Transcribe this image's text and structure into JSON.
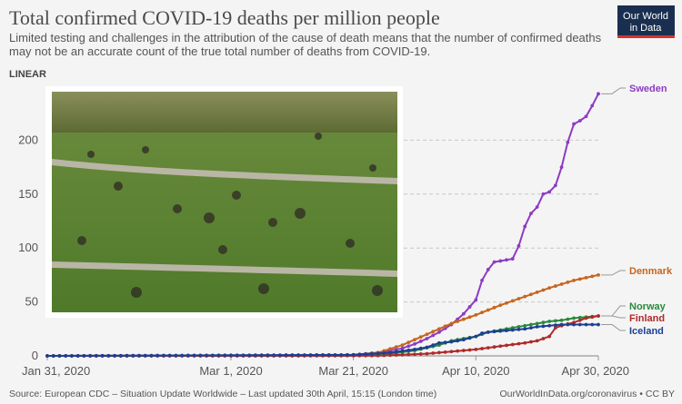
{
  "header": {
    "title": "Total confirmed COVID-19 deaths per million people",
    "subtitle_line1": "Limited testing and challenges in the attribution of the cause of death means that the number of confirmed deaths",
    "subtitle_line2": "may not be an accurate count of the true total number of deaths from COVID-19.",
    "scale_label": "LINEAR"
  },
  "logo": {
    "line1": "Our World",
    "line2": "in Data",
    "bg": "#1a2f4f",
    "accent": "#d3342d"
  },
  "footer": {
    "source": "Source: European CDC – Situation Update Worldwide – Last updated 30th April, 15:15 (London time)",
    "credit": "OurWorldInData.org/coronavirus • CC BY"
  },
  "photo": {
    "alt": "people-in-park-photo"
  },
  "chart_data": {
    "type": "line",
    "title": "Total confirmed COVID-19 deaths per million people",
    "xlabel": "",
    "ylabel": "",
    "x_ticks": [
      {
        "day": 0,
        "label": "Jan 31, 2020"
      },
      {
        "day": 30,
        "label": "Mar 1, 2020"
      },
      {
        "day": 50,
        "label": "Mar 21, 2020"
      },
      {
        "day": 70,
        "label": "Apr 10, 2020"
      },
      {
        "day": 90,
        "label": "Apr 30, 2020"
      }
    ],
    "xlim": [
      0,
      90
    ],
    "ylim": [
      0,
      250
    ],
    "y_ticks": [
      0,
      50,
      100,
      150,
      200
    ],
    "series": [
      {
        "name": "Sweden",
        "color": "#8d3bc4",
        "points": [
          [
            0,
            0
          ],
          [
            48,
            0.2
          ],
          [
            50,
            1
          ],
          [
            52,
            2
          ],
          [
            54,
            3
          ],
          [
            56,
            5
          ],
          [
            58,
            7
          ],
          [
            60,
            11
          ],
          [
            62,
            16
          ],
          [
            64,
            22
          ],
          [
            66,
            29
          ],
          [
            68,
            39
          ],
          [
            70,
            52
          ],
          [
            71,
            70
          ],
          [
            72,
            80
          ],
          [
            73,
            87
          ],
          [
            74,
            88
          ],
          [
            75,
            89
          ],
          [
            76,
            90
          ],
          [
            77,
            102
          ],
          [
            78,
            120
          ],
          [
            79,
            132
          ],
          [
            80,
            138
          ],
          [
            81,
            150
          ],
          [
            82,
            152
          ],
          [
            83,
            158
          ],
          [
            84,
            175
          ],
          [
            85,
            198
          ],
          [
            86,
            215
          ],
          [
            87,
            218
          ],
          [
            88,
            222
          ],
          [
            89,
            232
          ],
          [
            90,
            243
          ]
        ]
      },
      {
        "name": "Denmark",
        "color": "#c8641d",
        "points": [
          [
            0,
            0
          ],
          [
            50,
            0.5
          ],
          [
            54,
            3
          ],
          [
            58,
            10
          ],
          [
            62,
            20
          ],
          [
            66,
            30
          ],
          [
            70,
            38
          ],
          [
            74,
            47
          ],
          [
            78,
            55
          ],
          [
            82,
            63
          ],
          [
            86,
            70
          ],
          [
            90,
            75
          ]
        ]
      },
      {
        "name": "Norway",
        "color": "#2a8a3b",
        "points": [
          [
            0,
            0
          ],
          [
            50,
            0.3
          ],
          [
            56,
            2
          ],
          [
            60,
            5
          ],
          [
            64,
            10
          ],
          [
            66,
            14
          ],
          [
            68,
            16
          ],
          [
            70,
            18
          ],
          [
            72,
            22
          ],
          [
            74,
            24
          ],
          [
            76,
            26
          ],
          [
            78,
            28
          ],
          [
            80,
            30
          ],
          [
            82,
            32
          ],
          [
            84,
            33
          ],
          [
            86,
            35
          ],
          [
            88,
            36
          ],
          [
            90,
            37
          ]
        ]
      },
      {
        "name": "Finland",
        "color": "#b02a2a",
        "points": [
          [
            0,
            0
          ],
          [
            54,
            0.2
          ],
          [
            58,
            1
          ],
          [
            62,
            2
          ],
          [
            66,
            4
          ],
          [
            70,
            6
          ],
          [
            74,
            9
          ],
          [
            78,
            12
          ],
          [
            80,
            14
          ],
          [
            82,
            18
          ],
          [
            83,
            26
          ],
          [
            84,
            28
          ],
          [
            86,
            31
          ],
          [
            88,
            35
          ],
          [
            90,
            37
          ]
        ]
      },
      {
        "name": "Iceland",
        "color": "#1c3f94",
        "points": [
          [
            0,
            0
          ],
          [
            50,
            1
          ],
          [
            56,
            3
          ],
          [
            60,
            6
          ],
          [
            62,
            8
          ],
          [
            64,
            12
          ],
          [
            66,
            13
          ],
          [
            68,
            15
          ],
          [
            70,
            18
          ],
          [
            71,
            21
          ],
          [
            72,
            22
          ],
          [
            74,
            23
          ],
          [
            76,
            24
          ],
          [
            78,
            25
          ],
          [
            80,
            27
          ],
          [
            82,
            28
          ],
          [
            84,
            29
          ],
          [
            86,
            29
          ],
          [
            88,
            29
          ],
          [
            90,
            29
          ]
        ]
      }
    ],
    "series_label_order": [
      "Sweden",
      "Denmark",
      "Norway",
      "Finland",
      "Iceland"
    ],
    "legend_placement": "right"
  }
}
